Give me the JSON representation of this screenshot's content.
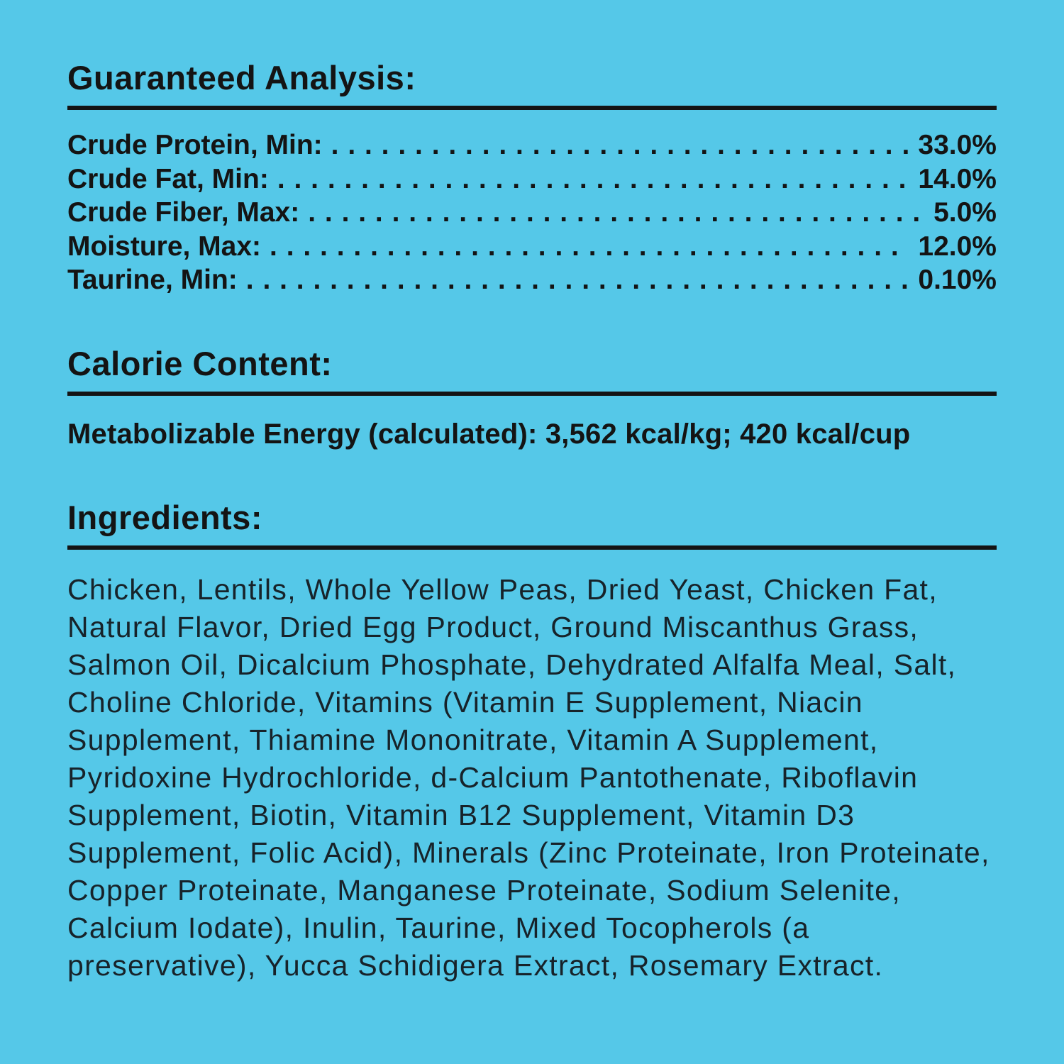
{
  "colors": {
    "background": "#55C8E8",
    "text": "#141414"
  },
  "guaranteed_analysis": {
    "heading": "Guaranteed Analysis:",
    "rows": [
      {
        "label": "Crude Protein, Min:",
        "value": "33.0%"
      },
      {
        "label": "Crude Fat, Min:",
        "value": "14.0%"
      },
      {
        "label": "Crude Fiber, Max:",
        "value": "5.0%"
      },
      {
        "label": "Moisture, Max:",
        "value": "12.0%"
      },
      {
        "label": "Taurine, Min:",
        "value": "0.10%"
      }
    ]
  },
  "calorie_content": {
    "heading": "Calorie Content:",
    "text": "Metabolizable Energy (calculated): 3,562 kcal/kg; 420 kcal/cup"
  },
  "ingredients": {
    "heading": "Ingredients:",
    "text": "Chicken, Lentils, Whole Yellow Peas, Dried Yeast, Chicken Fat, Natural Flavor, Dried Egg Product, Ground Miscanthus Grass, Salmon Oil, Dicalcium Phosphate, Dehydrated Alfalfa Meal, Salt, Choline Chloride, Vitamins (Vitamin E Supplement, Niacin Supplement, Thiamine Mononitrate, Vitamin A Supplement, Pyridoxine Hydrochloride, d-Calcium Pantothenate, Riboflavin Supplement, Biotin, Vitamin B12 Supplement, Vitamin D3 Supplement, Folic Acid), Minerals (Zinc Proteinate, Iron Proteinate, Copper Proteinate, Manganese Proteinate, Sodium Selenite, Calcium Iodate), Inulin, Taurine, Mixed Tocopherols (a preservative), Yucca Schidigera Extract, Rosemary Extract."
  }
}
